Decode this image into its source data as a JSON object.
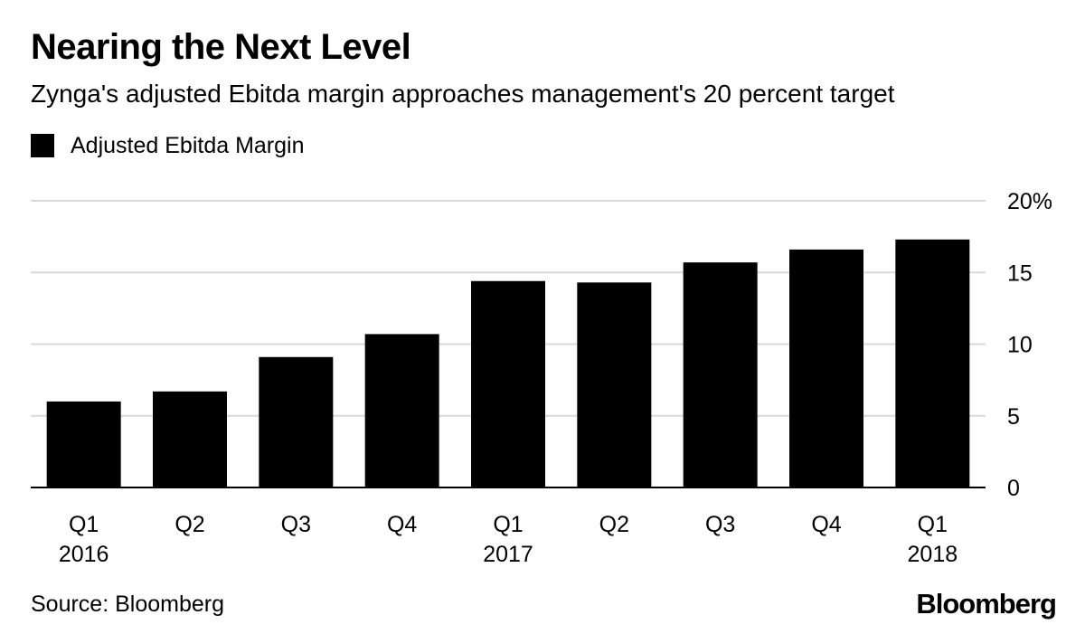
{
  "chart_data": {
    "type": "bar",
    "title": "Nearing the Next Level",
    "subtitle": "Zynga's adjusted Ebitda margin approaches management's 20 percent target",
    "legend": {
      "position": "top-left",
      "entries": [
        "Adjusted Ebitda Margin"
      ]
    },
    "categories": [
      "Q1",
      "Q2",
      "Q3",
      "Q4",
      "Q1",
      "Q2",
      "Q3",
      "Q4",
      "Q1"
    ],
    "year_labels": [
      "2016",
      "",
      "",
      "",
      "2017",
      "",
      "",
      "",
      "2018"
    ],
    "series": [
      {
        "name": "Adjusted Ebitda Margin",
        "color": "#000000",
        "values": [
          6.0,
          6.7,
          9.1,
          10.7,
          14.4,
          14.3,
          15.7,
          16.6,
          17.3
        ]
      }
    ],
    "ylim": [
      0,
      20
    ],
    "yticks": [
      0,
      5,
      10,
      15,
      20
    ],
    "ytick_labels": [
      "0",
      "5",
      "10",
      "15",
      "20%"
    ],
    "grid": true,
    "xlabel": "",
    "ylabel": ""
  },
  "source": "Source: Bloomberg",
  "brand": "Bloomberg"
}
